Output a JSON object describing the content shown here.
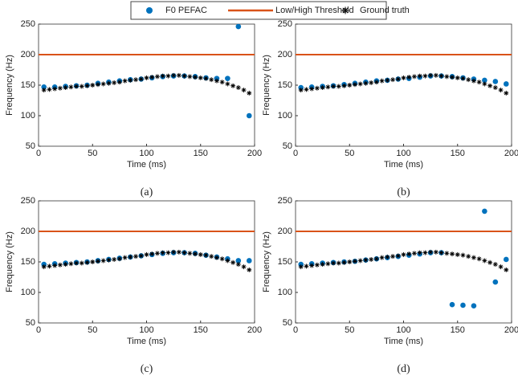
{
  "chart_data": [
    {
      "type": "scatter",
      "caption": "(a)",
      "xlabel": "Time (ms)",
      "ylabel": "Frequency (Hz)",
      "xlim": [
        0,
        200
      ],
      "ylim": [
        50,
        250
      ],
      "xticks": [
        0,
        50,
        100,
        150,
        200
      ],
      "yticks": [
        50,
        100,
        150,
        200,
        250
      ],
      "series": [
        {
          "name": "F0 PEFAC",
          "color": "#0072bd",
          "marker": "dot",
          "x": [
            5,
            15,
            25,
            35,
            45,
            55,
            65,
            75,
            85,
            95,
            105,
            115,
            125,
            135,
            145,
            155,
            165,
            175,
            185,
            195
          ],
          "values": [
            147,
            147,
            148,
            149,
            150,
            153,
            155,
            157,
            159,
            160,
            162,
            164,
            165,
            165,
            164,
            162,
            161,
            161,
            246,
            100
          ]
        },
        {
          "name": "Low/High Threshold",
          "color": "#d95319",
          "marker": "line",
          "x": [
            0,
            200
          ],
          "values": [
            200,
            200
          ]
        },
        {
          "name": "Ground truth",
          "color": "#000000",
          "marker": "asterisk",
          "x": [
            5,
            10,
            15,
            20,
            25,
            30,
            35,
            40,
            45,
            50,
            55,
            60,
            65,
            70,
            75,
            80,
            85,
            90,
            95,
            100,
            105,
            110,
            115,
            120,
            125,
            130,
            135,
            140,
            145,
            150,
            155,
            160,
            165,
            170,
            175,
            180,
            185,
            190,
            195
          ],
          "values": [
            142,
            143,
            144,
            145,
            146,
            147,
            148,
            148,
            149,
            150,
            151,
            152,
            153,
            154,
            155,
            157,
            158,
            159,
            160,
            162,
            163,
            164,
            165,
            165,
            166,
            166,
            165,
            164,
            163,
            162,
            161,
            159,
            157,
            155,
            152,
            149,
            146,
            142,
            137
          ]
        }
      ]
    },
    {
      "type": "scatter",
      "caption": "(b)",
      "xlabel": "Time (ms)",
      "ylabel": "Frequency (Hz)",
      "xlim": [
        0,
        200
      ],
      "ylim": [
        50,
        250
      ],
      "xticks": [
        0,
        50,
        100,
        150,
        200
      ],
      "yticks": [
        50,
        100,
        150,
        200,
        250
      ],
      "series": [
        {
          "color": "#0072bd",
          "marker": "dot",
          "x": [
            5,
            15,
            25,
            35,
            45,
            55,
            65,
            75,
            85,
            95,
            105,
            115,
            125,
            135,
            145,
            155,
            165,
            175,
            185,
            195
          ],
          "values": [
            146,
            147,
            148,
            149,
            151,
            153,
            155,
            157,
            158,
            160,
            161,
            163,
            165,
            165,
            164,
            162,
            160,
            158,
            156,
            152
          ]
        },
        {
          "color": "#d95319",
          "marker": "line",
          "x": [
            0,
            200
          ],
          "values": [
            200,
            200
          ]
        },
        {
          "color": "#000000",
          "marker": "asterisk",
          "x": [
            5,
            10,
            15,
            20,
            25,
            30,
            35,
            40,
            45,
            50,
            55,
            60,
            65,
            70,
            75,
            80,
            85,
            90,
            95,
            100,
            105,
            110,
            115,
            120,
            125,
            130,
            135,
            140,
            145,
            150,
            155,
            160,
            165,
            170,
            175,
            180,
            185,
            190,
            195
          ],
          "values": [
            142,
            143,
            144,
            145,
            146,
            147,
            148,
            148,
            149,
            150,
            151,
            152,
            153,
            154,
            155,
            157,
            158,
            159,
            160,
            162,
            163,
            164,
            165,
            165,
            166,
            166,
            165,
            164,
            163,
            162,
            161,
            159,
            157,
            155,
            152,
            149,
            146,
            142,
            137
          ]
        }
      ]
    },
    {
      "type": "scatter",
      "caption": "(c)",
      "xlabel": "Time (ms)",
      "ylabel": "Frequency (Hz)",
      "xlim": [
        0,
        200
      ],
      "ylim": [
        50,
        250
      ],
      "xticks": [
        0,
        50,
        100,
        150,
        200
      ],
      "yticks": [
        50,
        100,
        150,
        200,
        250
      ],
      "series": [
        {
          "color": "#0072bd",
          "marker": "dot",
          "x": [
            5,
            15,
            25,
            35,
            45,
            55,
            65,
            75,
            85,
            95,
            105,
            115,
            125,
            135,
            145,
            155,
            165,
            175,
            185,
            195
          ],
          "values": [
            146,
            147,
            148,
            149,
            150,
            152,
            154,
            156,
            158,
            160,
            162,
            164,
            165,
            165,
            164,
            161,
            158,
            155,
            152,
            152
          ]
        },
        {
          "color": "#d95319",
          "marker": "line",
          "x": [
            0,
            200
          ],
          "values": [
            200,
            200
          ]
        },
        {
          "color": "#000000",
          "marker": "asterisk",
          "x": [
            5,
            10,
            15,
            20,
            25,
            30,
            35,
            40,
            45,
            50,
            55,
            60,
            65,
            70,
            75,
            80,
            85,
            90,
            95,
            100,
            105,
            110,
            115,
            120,
            125,
            130,
            135,
            140,
            145,
            150,
            155,
            160,
            165,
            170,
            175,
            180,
            185,
            190,
            195
          ],
          "values": [
            142,
            143,
            144,
            145,
            146,
            147,
            148,
            148,
            149,
            150,
            151,
            152,
            153,
            154,
            155,
            157,
            158,
            159,
            160,
            162,
            163,
            164,
            165,
            165,
            166,
            166,
            165,
            164,
            163,
            162,
            161,
            159,
            157,
            155,
            152,
            149,
            146,
            142,
            137
          ]
        }
      ]
    },
    {
      "type": "scatter",
      "caption": "(d)",
      "xlabel": "Time (ms)",
      "ylabel": "Frequency (Hz)",
      "xlim": [
        0,
        200
      ],
      "ylim": [
        50,
        250
      ],
      "xticks": [
        0,
        50,
        100,
        150,
        200
      ],
      "yticks": [
        50,
        100,
        150,
        200,
        250
      ],
      "series": [
        {
          "color": "#0072bd",
          "marker": "dot",
          "x": [
            5,
            15,
            25,
            35,
            45,
            55,
            65,
            75,
            85,
            95,
            105,
            115,
            125,
            135,
            145,
            155,
            165,
            175,
            185,
            195
          ],
          "values": [
            146,
            147,
            148,
            149,
            150,
            151,
            153,
            155,
            157,
            159,
            161,
            163,
            165,
            165,
            80,
            79,
            78,
            233,
            117,
            154
          ]
        },
        {
          "color": "#d95319",
          "marker": "line",
          "x": [
            0,
            200
          ],
          "values": [
            200,
            200
          ]
        },
        {
          "color": "#000000",
          "marker": "asterisk",
          "x": [
            5,
            10,
            15,
            20,
            25,
            30,
            35,
            40,
            45,
            50,
            55,
            60,
            65,
            70,
            75,
            80,
            85,
            90,
            95,
            100,
            105,
            110,
            115,
            120,
            125,
            130,
            135,
            140,
            145,
            150,
            155,
            160,
            165,
            170,
            175,
            180,
            185,
            190,
            195
          ],
          "values": [
            142,
            143,
            144,
            145,
            146,
            147,
            148,
            148,
            149,
            150,
            151,
            152,
            153,
            154,
            155,
            157,
            158,
            159,
            160,
            162,
            163,
            164,
            165,
            165,
            166,
            166,
            165,
            164,
            163,
            162,
            161,
            159,
            157,
            155,
            152,
            149,
            146,
            142,
            137
          ]
        }
      ]
    }
  ]
}
